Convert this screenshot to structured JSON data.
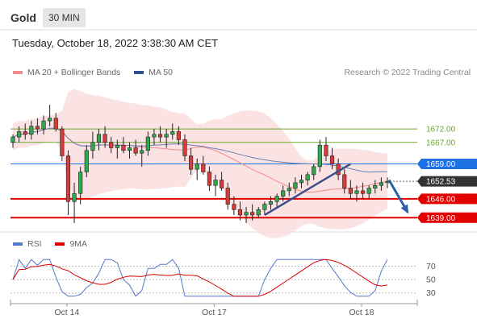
{
  "header": {
    "title": "Gold",
    "timeframe": "30 MIN"
  },
  "dateline": "Tuesday, October 18, 2022 3:38:30 AM CET",
  "legend": {
    "items": [
      {
        "label": "MA 20 + Bollinger Bands",
        "color": "#f28b8b"
      },
      {
        "label": "MA 50",
        "color": "#2f4f8f"
      }
    ],
    "credit": "Research © 2022 Trading Central"
  },
  "rsi_legend": {
    "items": [
      {
        "label": "RSI",
        "color": "#5577cc"
      },
      {
        "label": "9MA",
        "color": "#dd0000"
      }
    ]
  },
  "chart_data": {
    "type": "candlestick",
    "instrument": "Gold",
    "interval": "30 MIN",
    "x_ticks": [
      "Oct 14",
      "Oct 17",
      "Oct 18"
    ],
    "price_levels": [
      {
        "label": "1672.00",
        "value": 1672.0,
        "style": "resistance",
        "color": "#6aaa2a"
      },
      {
        "label": "1667.00",
        "value": 1667.0,
        "style": "resistance",
        "color": "#6aaa2a"
      },
      {
        "label": "1659.00",
        "value": 1659.0,
        "style": "pivot",
        "color": "#1f6fe5"
      },
      {
        "label": "1652.53",
        "value": 1652.53,
        "style": "last",
        "color": "#333333"
      },
      {
        "label": "1646.00",
        "value": 1646.0,
        "style": "support",
        "color": "#e00000"
      },
      {
        "label": "1639.00",
        "value": 1639.0,
        "style": "support",
        "color": "#e00000"
      }
    ],
    "ohlc": [
      [
        1667,
        1670,
        1665,
        1669
      ],
      [
        1669,
        1673,
        1667,
        1671
      ],
      [
        1671,
        1674,
        1668,
        1670
      ],
      [
        1670,
        1675,
        1668,
        1673
      ],
      [
        1673,
        1676,
        1670,
        1672
      ],
      [
        1672,
        1677,
        1670,
        1675
      ],
      [
        1675,
        1681,
        1673,
        1676
      ],
      [
        1676,
        1678,
        1671,
        1672
      ],
      [
        1672,
        1673,
        1660,
        1662
      ],
      [
        1662,
        1664,
        1640,
        1645
      ],
      [
        1645,
        1652,
        1637,
        1648
      ],
      [
        1648,
        1658,
        1644,
        1656
      ],
      [
        1656,
        1666,
        1654,
        1664
      ],
      [
        1664,
        1671,
        1661,
        1667
      ],
      [
        1667,
        1672,
        1664,
        1670
      ],
      [
        1670,
        1673,
        1665,
        1667
      ],
      [
        1667,
        1669,
        1663,
        1665
      ],
      [
        1665,
        1668,
        1661,
        1666
      ],
      [
        1666,
        1669,
        1663,
        1664
      ],
      [
        1664,
        1667,
        1661,
        1665
      ],
      [
        1665,
        1668,
        1662,
        1663
      ],
      [
        1663,
        1666,
        1658,
        1664
      ],
      [
        1664,
        1671,
        1662,
        1669
      ],
      [
        1669,
        1672,
        1666,
        1670
      ],
      [
        1670,
        1673,
        1667,
        1669
      ],
      [
        1669,
        1672,
        1665,
        1670
      ],
      [
        1670,
        1674,
        1668,
        1671
      ],
      [
        1671,
        1673,
        1666,
        1668
      ],
      [
        1668,
        1670,
        1660,
        1662
      ],
      [
        1662,
        1665,
        1655,
        1657
      ],
      [
        1657,
        1661,
        1653,
        1659
      ],
      [
        1659,
        1662,
        1655,
        1656
      ],
      [
        1656,
        1658,
        1649,
        1651
      ],
      [
        1651,
        1655,
        1647,
        1653
      ],
      [
        1653,
        1656,
        1649,
        1650
      ],
      [
        1650,
        1652,
        1642,
        1644
      ],
      [
        1644,
        1647,
        1640,
        1642
      ],
      [
        1642,
        1645,
        1638,
        1640
      ],
      [
        1640,
        1643,
        1637,
        1641
      ],
      [
        1641,
        1644,
        1638,
        1640
      ],
      [
        1640,
        1643,
        1639,
        1642
      ],
      [
        1642,
        1645,
        1640,
        1644
      ],
      [
        1644,
        1647,
        1642,
        1645
      ],
      [
        1645,
        1648,
        1643,
        1647
      ],
      [
        1647,
        1651,
        1645,
        1649
      ],
      [
        1649,
        1652,
        1647,
        1650
      ],
      [
        1650,
        1654,
        1648,
        1652
      ],
      [
        1652,
        1655,
        1650,
        1653
      ],
      [
        1653,
        1656,
        1651,
        1655
      ],
      [
        1655,
        1659,
        1653,
        1658
      ],
      [
        1658,
        1668,
        1656,
        1666
      ],
      [
        1666,
        1669,
        1660,
        1662
      ],
      [
        1662,
        1665,
        1657,
        1659
      ],
      [
        1659,
        1661,
        1653,
        1655
      ],
      [
        1655,
        1657,
        1648,
        1650
      ],
      [
        1650,
        1653,
        1646,
        1648
      ],
      [
        1648,
        1651,
        1645,
        1649
      ],
      [
        1649,
        1652,
        1646,
        1648
      ],
      [
        1648,
        1651,
        1646,
        1650
      ],
      [
        1650,
        1653,
        1648,
        1651
      ],
      [
        1651,
        1654,
        1649,
        1652
      ],
      [
        1652,
        1654,
        1650,
        1652.53
      ]
    ],
    "trendline": {
      "from": [
        41,
        1640
      ],
      "to": [
        55,
        1659
      ]
    },
    "forecast_arrow": {
      "from": [
        61,
        1653
      ],
      "to": [
        63,
        1641
      ]
    },
    "rsi": {
      "levels": [
        70,
        50,
        30
      ],
      "level_labels": [
        "70",
        "50",
        "30"
      ]
    }
  }
}
